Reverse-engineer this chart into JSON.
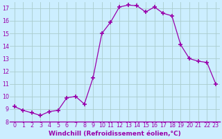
{
  "x": [
    0,
    1,
    2,
    3,
    4,
    5,
    6,
    7,
    8,
    9,
    10,
    11,
    12,
    13,
    14,
    15,
    16,
    17,
    18,
    19,
    20,
    21,
    22,
    23
  ],
  "y": [
    9.2,
    8.9,
    8.7,
    8.5,
    8.8,
    8.9,
    9.9,
    10.0,
    9.4,
    11.5,
    15.0,
    15.9,
    17.1,
    17.25,
    17.2,
    16.7,
    17.1,
    16.6,
    16.4,
    14.1,
    13.0,
    12.8,
    12.7,
    11.0
  ],
  "line_color": "#9900aa",
  "marker": "+",
  "marker_size": 4,
  "background_color": "#cceeff",
  "grid_color": "#aacccc",
  "xlabel": "Windchill (Refroidissement éolien,°C)",
  "xlabel_color": "#9900aa",
  "xlabel_fontsize": 6.5,
  "tick_color": "#9900aa",
  "tick_fontsize": 5.8,
  "ylim": [
    8,
    17.5
  ],
  "yticks": [
    8,
    9,
    10,
    11,
    12,
    13,
    14,
    15,
    16,
    17
  ],
  "xticks": [
    0,
    1,
    2,
    3,
    4,
    5,
    6,
    7,
    8,
    9,
    10,
    11,
    12,
    13,
    14,
    15,
    16,
    17,
    18,
    19,
    20,
    21,
    22,
    23
  ]
}
